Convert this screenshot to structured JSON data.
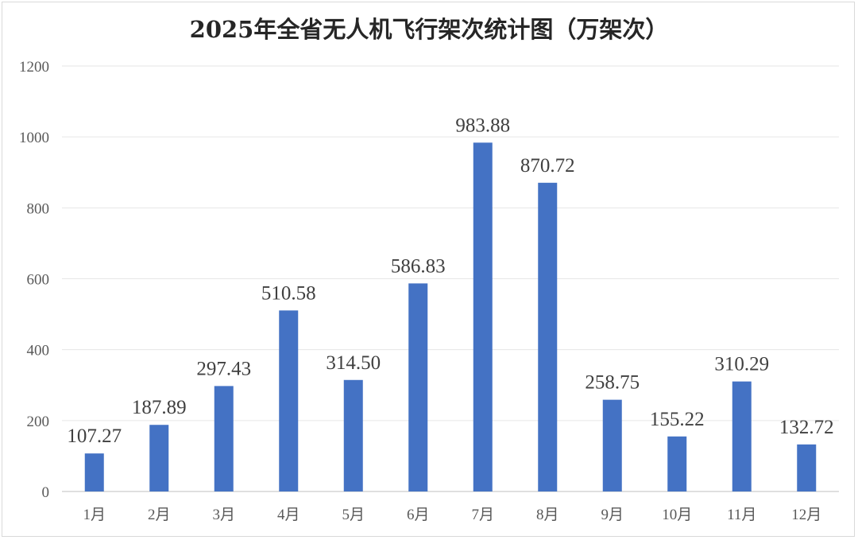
{
  "chart_data": {
    "type": "bar",
    "title": "2025年全省无人机飞行架次统计图（万架次）",
    "categories": [
      "1月",
      "2月",
      "3月",
      "4月",
      "5月",
      "6月",
      "7月",
      "8月",
      "9月",
      "10月",
      "11月",
      "12月"
    ],
    "values": [
      107.27,
      187.89,
      297.43,
      510.58,
      314.5,
      586.83,
      983.88,
      870.72,
      258.75,
      155.22,
      310.29,
      132.72
    ],
    "value_labels": [
      "107.27",
      "187.89",
      "297.43",
      "510.58",
      "314.50",
      "586.83",
      "983.88",
      "870.72",
      "258.75",
      "155.22",
      "310.29",
      "132.72"
    ],
    "ylim": [
      0,
      1200
    ],
    "yticks": [
      0,
      200,
      400,
      600,
      800,
      1000,
      1200
    ],
    "grid": true,
    "legend": "none",
    "bar_color": "#4472C4"
  }
}
